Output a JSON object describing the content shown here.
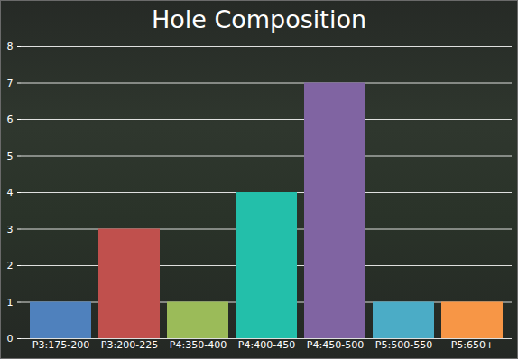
{
  "chart_data": {
    "type": "bar",
    "title": "Hole Composition",
    "categories": [
      "P3:175-200",
      "P3:200-225",
      "P4:350-400",
      "P4:400-450",
      "P4:450-500",
      "P5:500-550",
      "P5:650+"
    ],
    "values": [
      1,
      3,
      1,
      4,
      7,
      1,
      1
    ],
    "colors": [
      "#4f81bd",
      "#c0504d",
      "#9bbb59",
      "#23bfaa",
      "#8064a2",
      "#4bacc6",
      "#f79646"
    ],
    "ylim": [
      0,
      8
    ],
    "yticks": [
      0,
      1,
      2,
      3,
      4,
      5,
      6,
      7,
      8
    ],
    "grid": true
  }
}
